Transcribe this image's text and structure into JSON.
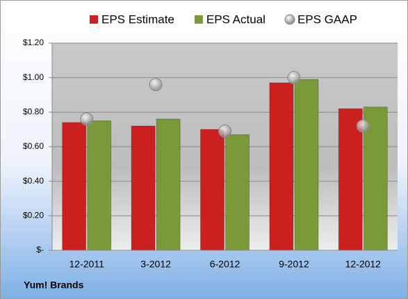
{
  "chart_data": {
    "type": "bar",
    "annotation": "Yum! Brands",
    "categories": [
      "12-2011",
      "3-2012",
      "6-2012",
      "9-2012",
      "12-2012"
    ],
    "series": [
      {
        "name": "EPS Estimate",
        "color": "#cc1f1f",
        "type": "bar",
        "values": [
          0.74,
          0.72,
          0.7,
          0.97,
          0.82
        ]
      },
      {
        "name": "EPS Actual",
        "color": "#7a9a3a",
        "type": "bar",
        "values": [
          0.75,
          0.76,
          0.67,
          0.99,
          0.83
        ]
      },
      {
        "name": "EPS GAAP",
        "color": "#a9a9a9",
        "type": "scatter",
        "values": [
          0.76,
          0.96,
          0.69,
          1.0,
          0.72
        ]
      }
    ],
    "ylim": [
      0,
      1.2
    ],
    "yticks": [
      {
        "value": 0,
        "label": "$-"
      },
      {
        "value": 0.2,
        "label": "$0.20"
      },
      {
        "value": 0.4,
        "label": "$0.40"
      },
      {
        "value": 0.6,
        "label": "$0.60"
      },
      {
        "value": 0.8,
        "label": "$0.80"
      },
      {
        "value": 1.0,
        "label": "$1.00"
      },
      {
        "value": 1.2,
        "label": "$1.20"
      }
    ],
    "grid": true,
    "legend": "top"
  }
}
